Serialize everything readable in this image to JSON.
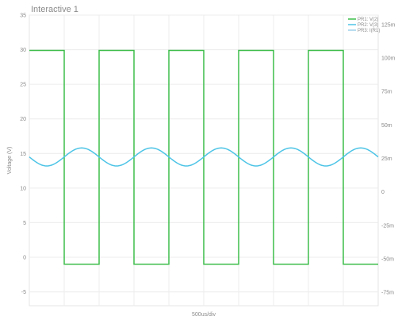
{
  "window": {
    "title": "Interactive 1"
  },
  "chart_data": {
    "type": "line",
    "title": "",
    "xlabel": "500us/div",
    "ylabel": "Voltage (V)",
    "ylabel_right": "",
    "grid": true,
    "legend_position": "top-right",
    "x_divisions": 10,
    "xlim": [
      0,
      10
    ],
    "ylim": [
      -7,
      35
    ],
    "ylim_right": [
      -85,
      132
    ],
    "y_ticks": [
      "35",
      "30",
      "25",
      "20",
      "15",
      "10",
      "5",
      "0",
      "-5"
    ],
    "y_tick_values": [
      35,
      30,
      25,
      20,
      15,
      10,
      5,
      0,
      -5
    ],
    "y_right_ticks": [
      "125m",
      "100m",
      "75m",
      "50m",
      "25m",
      "0",
      "-25m",
      "-50m",
      "-75m"
    ],
    "y_right_tick_values": [
      125,
      100,
      75,
      50,
      25,
      0,
      -25,
      -50,
      -75
    ],
    "series": [
      {
        "name": "PR1: V(2)",
        "color": "#3dbd4a",
        "axis": "left",
        "shape": "square",
        "high": 29.9,
        "low": -1.0,
        "period_div": 2.0,
        "high_start_div": 0.0,
        "high_duration_div": 1.0
      },
      {
        "name": "PR2: V(3)",
        "color": "#4dc4e6",
        "axis": "left",
        "shape": "sine",
        "offset": 14.5,
        "amplitude": 1.3,
        "period_div": 2.0,
        "peak_at_div": 1.5
      },
      {
        "name": "PR3: I(R1)",
        "color": "#9fd0ea",
        "axis": "right",
        "shape": "none"
      }
    ]
  }
}
